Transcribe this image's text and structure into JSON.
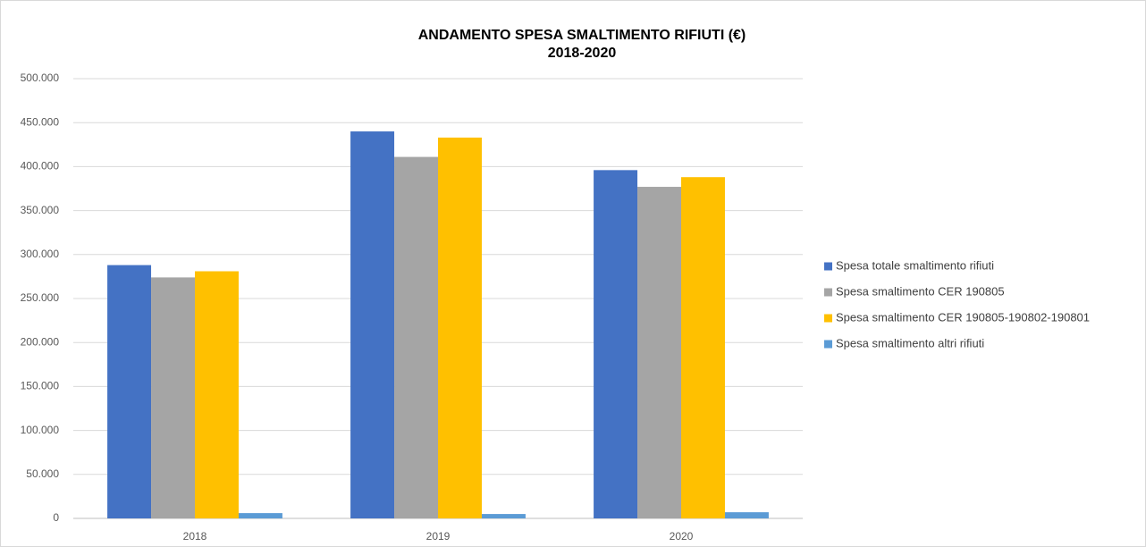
{
  "chart_data": {
    "type": "bar",
    "title": "ANDAMENTO SPESA SMALTIMENTO RIFIUTI (€)",
    "subtitle": "2018-2020",
    "categories": [
      "2018",
      "2019",
      "2020"
    ],
    "series": [
      {
        "name": "Spesa totale smaltimento rifiuti",
        "color": "#4472c4",
        "values": [
          288000,
          440000,
          396000
        ]
      },
      {
        "name": "Spesa smaltimento CER 190805",
        "color": "#a5a5a5",
        "values": [
          274000,
          411000,
          377000
        ]
      },
      {
        "name": "Spesa smaltimento CER 190805-190802-190801",
        "color": "#ffc000",
        "values": [
          281000,
          433000,
          388000
        ]
      },
      {
        "name": "Spesa smaltimento altri rifiuti",
        "color": "#5b9bd5",
        "values": [
          6000,
          5000,
          7000
        ]
      }
    ],
    "ylim": [
      0,
      500000
    ],
    "yticks": [
      0,
      {
        "value": 50000,
        "label": "50.000"
      },
      {
        "value": 100000,
        "label": "100.000"
      },
      {
        "value": 150000,
        "label": "150.000"
      },
      {
        "value": 200000,
        "label": "200.000"
      },
      {
        "value": 250000,
        "label": "250.000"
      },
      {
        "value": 300000,
        "label": "300.000"
      },
      {
        "value": 350000,
        "label": "350.000"
      },
      {
        "value": 400000,
        "label": "400.000"
      },
      {
        "value": 450000,
        "label": "450.000"
      },
      {
        "value": 500000,
        "label": "500.000"
      }
    ],
    "grid": true,
    "legend": "right"
  }
}
